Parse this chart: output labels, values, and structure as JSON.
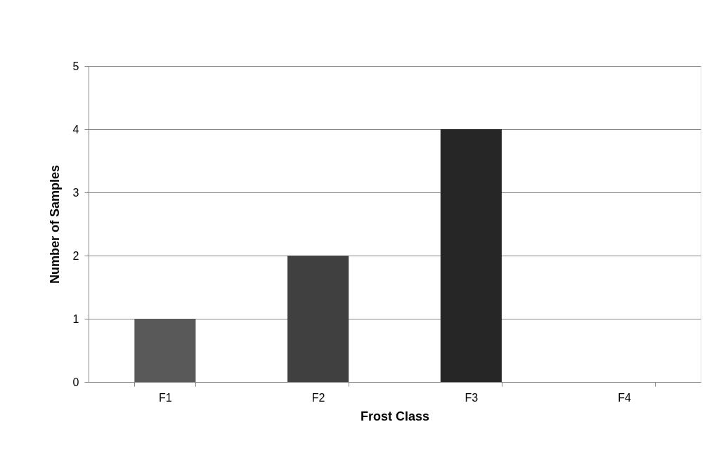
{
  "chart_data": {
    "type": "bar",
    "xlabel": "Frost Class",
    "ylabel": "Number of Samples",
    "categories": [
      "F1",
      "F2",
      "F3",
      "F4"
    ],
    "values": [
      1,
      2,
      4,
      0
    ],
    "colors": [
      "#595959",
      "#404040",
      "#262626",
      "#262626"
    ],
    "ylim": [
      0,
      5
    ],
    "yticks": [
      0,
      1,
      2,
      3,
      4,
      5
    ],
    "grid": "y"
  }
}
